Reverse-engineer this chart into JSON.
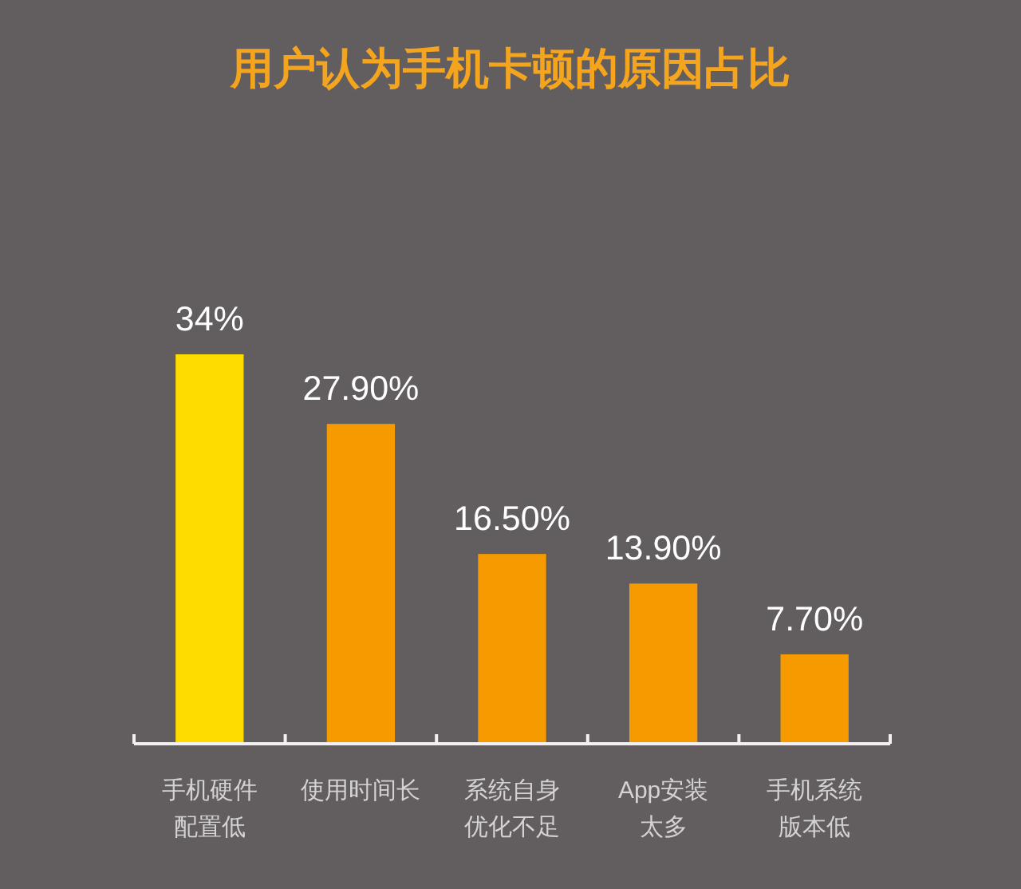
{
  "chart_data": {
    "type": "bar",
    "title": "用户认为手机卡顿的原因占比",
    "categories": [
      "手机硬件配置低",
      "使用时间长",
      "系统自身优化不足",
      "App安装太多",
      "手机系统版本低"
    ],
    "values": [
      34,
      27.9,
      16.5,
      13.9,
      7.7
    ],
    "colors": [
      "#ffdc00",
      "#f59b00",
      "#f59b00",
      "#f59b00",
      "#f59b00"
    ],
    "value_labels": [
      "34%",
      "27.90%",
      "16.50%",
      "13.90%",
      "7.70%"
    ]
  }
}
